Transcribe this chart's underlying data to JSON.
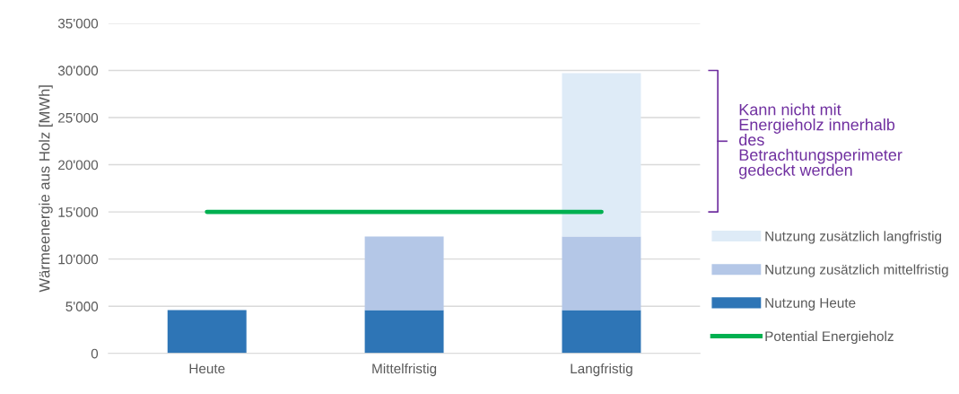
{
  "chart_data": {
    "type": "bar",
    "stacked": true,
    "ylabel": "Wärmeenergie aus Holz [MWh]",
    "categories": [
      "Heute",
      "Mittelfristig",
      "Langfristig"
    ],
    "series": [
      {
        "name": "Nutzung Heute",
        "color": "#2e75b6",
        "values": [
          4600,
          4600,
          4600
        ]
      },
      {
        "name": "Nutzung zusätzlich mittelfristig",
        "color": "#b4c7e7",
        "values": [
          null,
          7800,
          7800
        ]
      },
      {
        "name": "Nutzung zusätzlich langfristig",
        "color": "#deebf7",
        "values": [
          null,
          null,
          17300
        ]
      },
      {
        "name": "Potential Energieholz",
        "type": "line",
        "color": "#00b050",
        "values": [
          15000,
          15000,
          15000
        ]
      }
    ],
    "ylim": [
      0,
      35000
    ],
    "yticks": [
      0,
      {
        "value": 5000,
        "label": "5'000"
      },
      {
        "value": 10000,
        "label": "10'000"
      },
      {
        "value": 15000,
        "label": "15'000"
      },
      {
        "value": 20000,
        "label": "20'000"
      },
      {
        "value": 25000,
        "label": "25'000"
      },
      {
        "value": 30000,
        "label": "30'000"
      },
      {
        "value": 35000,
        "label": "35'000"
      }
    ],
    "grid": "y",
    "legend": "right",
    "marker": "none",
    "line_style": "solid",
    "annotations": [
      "Kann nicht mit\nEnergieholz innerhalb\ndes\nBetrachtungsperimeter\ngedeckt werden"
    ]
  }
}
